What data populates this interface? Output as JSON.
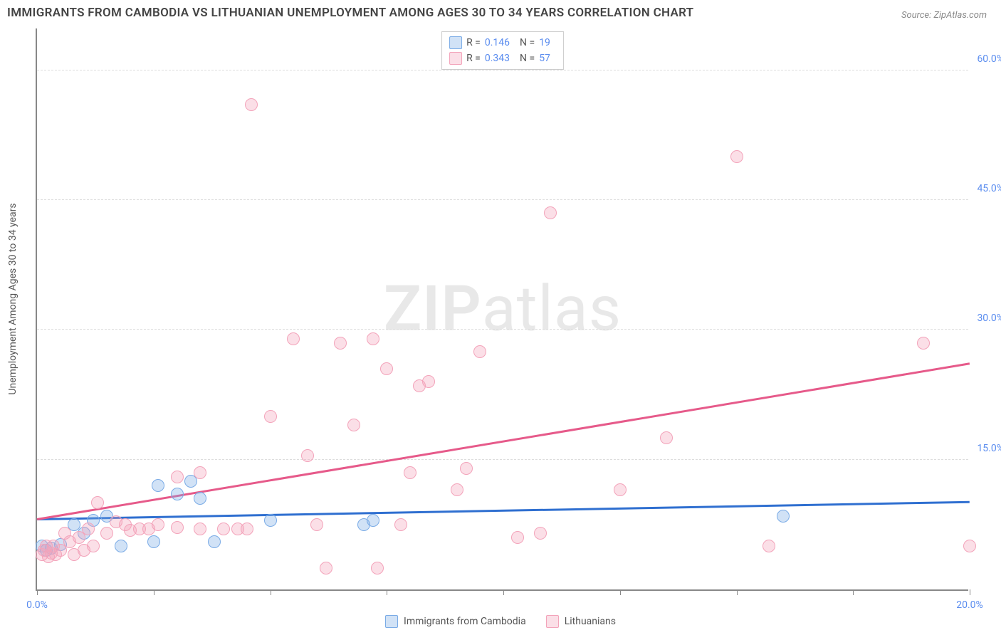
{
  "title": "IMMIGRANTS FROM CAMBODIA VS LITHUANIAN UNEMPLOYMENT AMONG AGES 30 TO 34 YEARS CORRELATION CHART",
  "source_label": "Source:",
  "source_value": "ZipAtlas.com",
  "watermark_a": "ZIP",
  "watermark_b": "atlas",
  "y_axis_label": "Unemployment Among Ages 30 to 34 years",
  "chart": {
    "type": "scatter",
    "background_color": "#ffffff",
    "grid_color": "#dddddd",
    "axis_color": "#888888",
    "xlim": [
      0,
      20
    ],
    "ylim": [
      0,
      65
    ],
    "x_ticks": [
      0,
      2.5,
      5,
      7.5,
      10,
      12.5,
      15,
      17.5,
      20
    ],
    "x_tick_labels": {
      "0": "0.0%",
      "20": "20.0%"
    },
    "y_ticks": [
      15,
      30,
      45,
      60
    ],
    "y_tick_labels": {
      "15": "15.0%",
      "30": "30.0%",
      "45": "45.0%",
      "60": "60.0%"
    },
    "marker_radius": 9,
    "marker_border_width": 1.5,
    "series": [
      {
        "key": "cambodia",
        "label": "Immigrants from Cambodia",
        "fill": "rgba(122,171,230,0.35)",
        "stroke": "#7aabe6",
        "trend_color": "#2f6fd0",
        "trend_width": 2.5,
        "r_value": "0.146",
        "n_value": "19",
        "trend_y_at_x0": 8.0,
        "trend_y_at_xmax": 10.0,
        "points": [
          [
            0.1,
            5.0
          ],
          [
            0.2,
            4.5
          ],
          [
            0.3,
            4.8
          ],
          [
            0.5,
            5.2
          ],
          [
            0.8,
            7.5
          ],
          [
            1.0,
            6.5
          ],
          [
            1.2,
            8.0
          ],
          [
            1.5,
            8.5
          ],
          [
            1.8,
            5.0
          ],
          [
            2.5,
            5.5
          ],
          [
            2.6,
            12.0
          ],
          [
            3.0,
            11.0
          ],
          [
            3.3,
            12.5
          ],
          [
            3.5,
            10.5
          ],
          [
            3.8,
            5.5
          ],
          [
            5.0,
            8.0
          ],
          [
            7.0,
            7.5
          ],
          [
            7.2,
            8.0
          ],
          [
            16.0,
            8.5
          ]
        ]
      },
      {
        "key": "lithuanians",
        "label": "Lithuanians",
        "fill": "rgba(243,163,186,0.35)",
        "stroke": "#f3a3ba",
        "trend_color": "#e65a8a",
        "trend_width": 2.5,
        "r_value": "0.343",
        "n_value": "57",
        "trend_y_at_x0": 8.0,
        "trend_y_at_xmax": 26.0,
        "points": [
          [
            0.1,
            4.0
          ],
          [
            0.15,
            4.5
          ],
          [
            0.2,
            5.0
          ],
          [
            0.25,
            3.8
          ],
          [
            0.3,
            4.2
          ],
          [
            0.35,
            5.0
          ],
          [
            0.4,
            4.0
          ],
          [
            0.5,
            4.5
          ],
          [
            0.6,
            6.5
          ],
          [
            0.7,
            5.5
          ],
          [
            0.8,
            4.0
          ],
          [
            0.9,
            6.0
          ],
          [
            1.0,
            4.5
          ],
          [
            1.1,
            7.0
          ],
          [
            1.2,
            5.0
          ],
          [
            1.3,
            10.0
          ],
          [
            1.5,
            6.5
          ],
          [
            1.7,
            7.8
          ],
          [
            1.9,
            7.5
          ],
          [
            2.0,
            6.8
          ],
          [
            2.2,
            7.0
          ],
          [
            2.4,
            7.0
          ],
          [
            2.6,
            7.5
          ],
          [
            3.0,
            7.2
          ],
          [
            3.0,
            13.0
          ],
          [
            3.5,
            7.0
          ],
          [
            3.5,
            13.5
          ],
          [
            4.0,
            7.0
          ],
          [
            4.3,
            7.0
          ],
          [
            4.5,
            7.0
          ],
          [
            4.6,
            56.0
          ],
          [
            5.0,
            20.0
          ],
          [
            5.5,
            29.0
          ],
          [
            5.8,
            15.5
          ],
          [
            6.0,
            7.5
          ],
          [
            6.2,
            2.5
          ],
          [
            6.5,
            28.5
          ],
          [
            6.8,
            19.0
          ],
          [
            7.2,
            29.0
          ],
          [
            7.3,
            2.5
          ],
          [
            7.5,
            25.5
          ],
          [
            7.8,
            7.5
          ],
          [
            8.0,
            13.5
          ],
          [
            8.2,
            23.5
          ],
          [
            8.4,
            24.0
          ],
          [
            9.0,
            11.5
          ],
          [
            9.2,
            14.0
          ],
          [
            9.5,
            27.5
          ],
          [
            10.3,
            6.0
          ],
          [
            10.8,
            6.5
          ],
          [
            11.0,
            43.5
          ],
          [
            12.5,
            11.5
          ],
          [
            13.5,
            17.5
          ],
          [
            15.0,
            50.0
          ],
          [
            15.7,
            5.0
          ],
          [
            19.0,
            28.5
          ],
          [
            20.0,
            5.0
          ]
        ]
      }
    ]
  },
  "legend_top": {
    "r_label": "R  =",
    "n_label": "N  ="
  }
}
